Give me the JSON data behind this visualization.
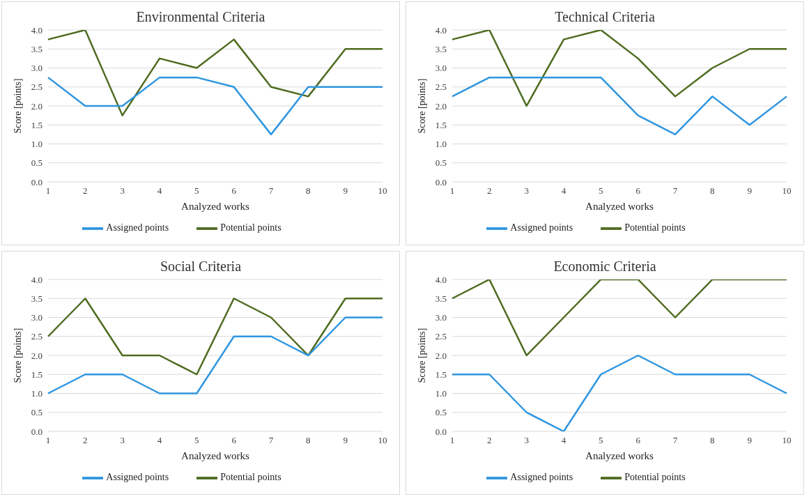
{
  "chart_data": [
    {
      "type": "line",
      "title": "Environmental Criteria",
      "xlabel": "Analyzed works",
      "ylabel": "Score [points]",
      "categories": [
        "1",
        "2",
        "3",
        "4",
        "5",
        "6",
        "7",
        "8",
        "9",
        "10"
      ],
      "ylim": [
        0,
        4
      ],
      "yticks": [
        {
          "value": 0,
          "label": "0.0"
        },
        {
          "value": 0.5,
          "label": "0.5"
        },
        {
          "value": 1,
          "label": "1.0"
        },
        {
          "value": 1.5,
          "label": "1.5"
        },
        {
          "value": 2,
          "label": "2.0"
        },
        {
          "value": 2.5,
          "label": "2.5"
        },
        {
          "value": 3,
          "label": "3.0"
        },
        {
          "value": 3.5,
          "label": "3.5"
        },
        {
          "value": 4,
          "label": "4.0"
        }
      ],
      "grid": "y",
      "legend": "bottom",
      "marker": "none",
      "line_style": "solid",
      "series": [
        {
          "name": "Potential points",
          "color": "#4e6b1f",
          "values": [
            3.75,
            4,
            1.75,
            3.25,
            3,
            3.75,
            2.5,
            2.25,
            3.5,
            3.5
          ]
        },
        {
          "name": "Assigned points",
          "color": "#2e95e0",
          "values": [
            2.75,
            2,
            2,
            2.75,
            2.75,
            2.5,
            1.25,
            2.5,
            2.5,
            2.5
          ]
        }
      ]
    },
    {
      "type": "line",
      "title": "Technical Criteria",
      "xlabel": "Analyzed works",
      "ylabel": "Score [points]",
      "categories": [
        "1",
        "2",
        "3",
        "4",
        "5",
        "6",
        "7",
        "8",
        "9",
        "10"
      ],
      "ylim": [
        0,
        4
      ],
      "yticks": [
        {
          "value": 0,
          "label": "0.0"
        },
        {
          "value": 0.5,
          "label": "0.5"
        },
        {
          "value": 1,
          "label": "1.0"
        },
        {
          "value": 1.5,
          "label": "1.5"
        },
        {
          "value": 2,
          "label": "2.0"
        },
        {
          "value": 2.5,
          "label": "2.5"
        },
        {
          "value": 3,
          "label": "3.0"
        },
        {
          "value": 3.5,
          "label": "3.5"
        },
        {
          "value": 4,
          "label": "4.0"
        }
      ],
      "grid": "y",
      "legend": "bottom",
      "marker": "none",
      "line_style": "solid",
      "series": [
        {
          "name": "Potential points",
          "color": "#4e6b1f",
          "values": [
            3.75,
            4,
            2,
            3.75,
            4,
            3.25,
            2.25,
            3,
            3.5,
            3.5
          ]
        },
        {
          "name": "Assigned points",
          "color": "#2e95e0",
          "values": [
            2.25,
            2.75,
            2.75,
            2.75,
            2.75,
            1.75,
            1.25,
            2.25,
            1.5,
            2.25
          ]
        }
      ]
    },
    {
      "type": "line",
      "title": "Social Criteria",
      "xlabel": "Analyzed works",
      "ylabel": "Score [points]",
      "categories": [
        "1",
        "2",
        "3",
        "4",
        "5",
        "6",
        "7",
        "8",
        "9",
        "10"
      ],
      "ylim": [
        0,
        4
      ],
      "yticks": [
        {
          "value": 0,
          "label": "0.0"
        },
        {
          "value": 0.5,
          "label": "0.5"
        },
        {
          "value": 1,
          "label": "1.0"
        },
        {
          "value": 1.5,
          "label": "1.5"
        },
        {
          "value": 2,
          "label": "2.0"
        },
        {
          "value": 2.5,
          "label": "2.5"
        },
        {
          "value": 3,
          "label": "3.0"
        },
        {
          "value": 3.5,
          "label": "3.5"
        },
        {
          "value": 4,
          "label": "4.0"
        }
      ],
      "grid": "y",
      "legend": "bottom",
      "marker": "none",
      "line_style": "solid",
      "series": [
        {
          "name": "Potential points",
          "color": "#4e6b1f",
          "values": [
            2.5,
            3.5,
            2,
            2,
            1.5,
            3.5,
            3,
            2,
            3.5,
            3.5
          ]
        },
        {
          "name": "Assigned points",
          "color": "#2e95e0",
          "values": [
            1,
            1.5,
            1.5,
            1,
            1,
            2.5,
            2.5,
            2,
            3,
            3
          ]
        }
      ]
    },
    {
      "type": "line",
      "title": "Economic Criteria",
      "xlabel": "Analyzed works",
      "ylabel": "Score [points]",
      "categories": [
        "1",
        "2",
        "3",
        "4",
        "5",
        "6",
        "7",
        "8",
        "9",
        "10"
      ],
      "ylim": [
        0,
        4
      ],
      "yticks": [
        {
          "value": 0,
          "label": "0.0"
        },
        {
          "value": 0.5,
          "label": "0.5"
        },
        {
          "value": 1,
          "label": "1.0"
        },
        {
          "value": 1.5,
          "label": "1.5"
        },
        {
          "value": 2,
          "label": "2.0"
        },
        {
          "value": 2.5,
          "label": "2.5"
        },
        {
          "value": 3,
          "label": "3.0"
        },
        {
          "value": 3.5,
          "label": "3.5"
        },
        {
          "value": 4,
          "label": "4.0"
        }
      ],
      "grid": "y",
      "legend": "bottom",
      "marker": "none",
      "line_style": "solid",
      "series": [
        {
          "name": "Potential points",
          "color": "#4e6b1f",
          "values": [
            3.5,
            4,
            2,
            3,
            4,
            4,
            3,
            4,
            4,
            4
          ]
        },
        {
          "name": "Assigned points",
          "color": "#2e95e0",
          "values": [
            1.5,
            1.5,
            0.5,
            0,
            1.5,
            2,
            1.5,
            1.5,
            1.5,
            1
          ]
        }
      ]
    }
  ]
}
